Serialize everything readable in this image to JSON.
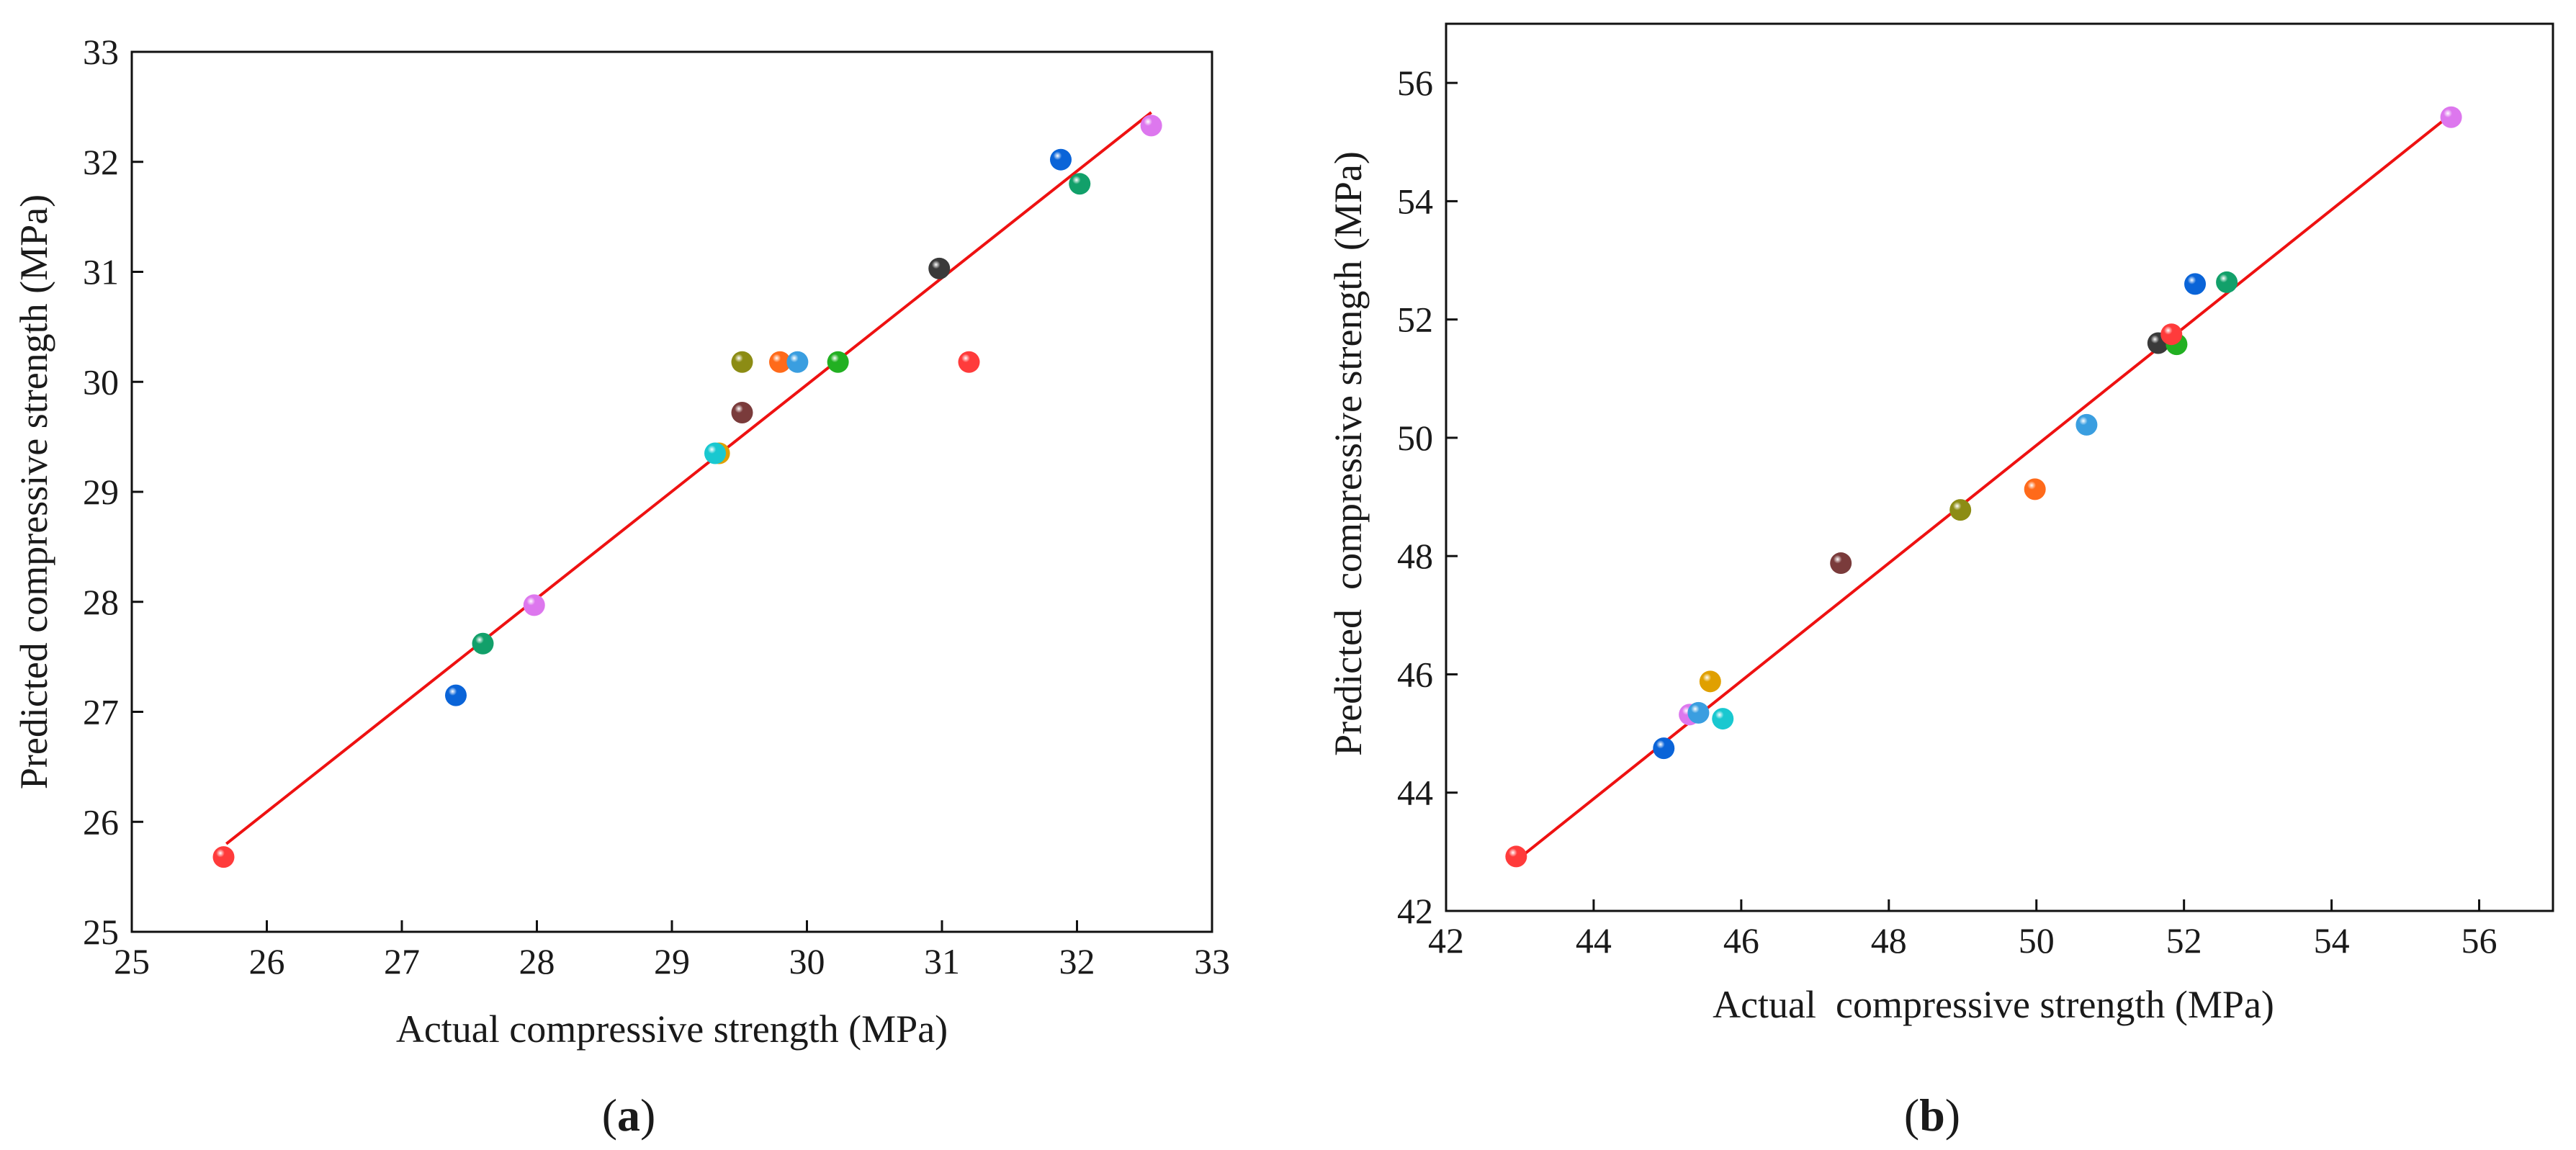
{
  "chart_data": [
    {
      "type": "scatter",
      "panel_label": "a",
      "xlabel": "Actual compressive strength (MPa)",
      "ylabel": "Predicted compressive strength (MPa)",
      "xlim": [
        25,
        33
      ],
      "ylim": [
        25,
        33
      ],
      "xticks": [
        25,
        26,
        27,
        28,
        29,
        30,
        31,
        32,
        33
      ],
      "yticks": [
        25,
        26,
        27,
        28,
        29,
        30,
        31,
        32,
        33
      ],
      "grid": false,
      "fit_line": {
        "x": [
          25.7,
          32.55
        ],
        "y": [
          25.8,
          32.45
        ],
        "color": "#ee1111"
      },
      "points": [
        {
          "x": 25.68,
          "y": 25.68,
          "color": "#ff3b3b"
        },
        {
          "x": 27.4,
          "y": 27.15,
          "color": "#0a64d8"
        },
        {
          "x": 27.6,
          "y": 27.62,
          "color": "#12a06a"
        },
        {
          "x": 27.98,
          "y": 27.97,
          "color": "#dd77ee"
        },
        {
          "x": 29.35,
          "y": 29.35,
          "color": "#e0a000"
        },
        {
          "x": 29.32,
          "y": 29.35,
          "color": "#19c8d0"
        },
        {
          "x": 29.52,
          "y": 29.72,
          "color": "#7a3b3b"
        },
        {
          "x": 29.52,
          "y": 30.18,
          "color": "#8c8c14"
        },
        {
          "x": 29.8,
          "y": 30.18,
          "color": "#ff6a1a"
        },
        {
          "x": 29.93,
          "y": 30.18,
          "color": "#3a9ee0"
        },
        {
          "x": 30.23,
          "y": 30.18,
          "color": "#22b022"
        },
        {
          "x": 31.2,
          "y": 30.18,
          "color": "#ff3b3b"
        },
        {
          "x": 30.98,
          "y": 31.03,
          "color": "#3a3a3a"
        },
        {
          "x": 31.88,
          "y": 32.02,
          "color": "#0a64d8"
        },
        {
          "x": 32.02,
          "y": 31.8,
          "color": "#12a06a"
        },
        {
          "x": 32.55,
          "y": 32.33,
          "color": "#dd77ee"
        }
      ]
    },
    {
      "type": "scatter",
      "panel_label": "b",
      "xlabel": "Actual  compressive strength (MPa)",
      "ylabel": "Predicted  compressive strength (MPa)",
      "xlim": [
        42,
        57
      ],
      "ylim": [
        42,
        57
      ],
      "xticks": [
        42,
        44,
        46,
        48,
        50,
        52,
        54,
        56
      ],
      "yticks": [
        42,
        44,
        46,
        48,
        50,
        52,
        54,
        56
      ],
      "grid": false,
      "fit_line": {
        "x": [
          42.95,
          55.6
        ],
        "y": [
          42.85,
          55.45
        ],
        "color": "#ee1111"
      },
      "points": [
        {
          "x": 42.95,
          "y": 42.92,
          "color": "#ff3b3b"
        },
        {
          "x": 44.95,
          "y": 44.75,
          "color": "#0a64d8"
        },
        {
          "x": 45.3,
          "y": 45.32,
          "color": "#dd77ee"
        },
        {
          "x": 45.42,
          "y": 45.35,
          "color": "#3a9ee0"
        },
        {
          "x": 45.58,
          "y": 45.88,
          "color": "#e0a000"
        },
        {
          "x": 45.75,
          "y": 45.25,
          "color": "#19c8d0"
        },
        {
          "x": 47.35,
          "y": 47.88,
          "color": "#7a3b3b"
        },
        {
          "x": 48.97,
          "y": 48.78,
          "color": "#8c8c14"
        },
        {
          "x": 49.98,
          "y": 49.13,
          "color": "#ff6a1a"
        },
        {
          "x": 50.68,
          "y": 50.22,
          "color": "#3a9ee0"
        },
        {
          "x": 51.65,
          "y": 51.6,
          "color": "#3a3a3a"
        },
        {
          "x": 51.9,
          "y": 51.58,
          "color": "#22b022"
        },
        {
          "x": 51.83,
          "y": 51.75,
          "color": "#ff3b3b"
        },
        {
          "x": 52.15,
          "y": 52.6,
          "color": "#0a64d8"
        },
        {
          "x": 52.58,
          "y": 52.63,
          "color": "#12a06a"
        },
        {
          "x": 55.62,
          "y": 55.42,
          "color": "#dd77ee"
        }
      ]
    }
  ]
}
